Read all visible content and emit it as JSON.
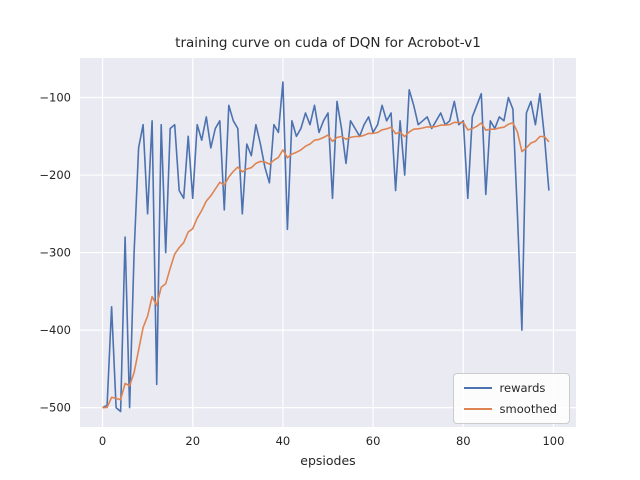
{
  "chart_data": {
    "type": "line",
    "title": "training curve on cuda of DQN for Acrobot-v1",
    "xlabel": "epsiodes",
    "ylabel": "",
    "xlim": [
      -5,
      105
    ],
    "ylim": [
      -525,
      -49
    ],
    "x_ticks": [
      0,
      20,
      40,
      60,
      80,
      100
    ],
    "y_ticks": [
      -500,
      -400,
      -300,
      -200,
      -100
    ],
    "grid": true,
    "legend_position": "lower right",
    "colors": {
      "axes_background": "#eaeaf2",
      "gridline": "#ffffff",
      "text": "#262626",
      "rewards": "#4c72b0",
      "smoothed": "#dd8452"
    },
    "x": [
      0,
      1,
      2,
      3,
      4,
      5,
      6,
      7,
      8,
      9,
      10,
      11,
      12,
      13,
      14,
      15,
      16,
      17,
      18,
      19,
      20,
      21,
      22,
      23,
      24,
      25,
      26,
      27,
      28,
      29,
      30,
      31,
      32,
      33,
      34,
      35,
      36,
      37,
      38,
      39,
      40,
      41,
      42,
      43,
      44,
      45,
      46,
      47,
      48,
      49,
      50,
      51,
      52,
      53,
      54,
      55,
      56,
      57,
      58,
      59,
      60,
      61,
      62,
      63,
      64,
      65,
      66,
      67,
      68,
      69,
      70,
      71,
      72,
      73,
      74,
      75,
      76,
      77,
      78,
      79,
      80,
      81,
      82,
      83,
      84,
      85,
      86,
      87,
      88,
      89,
      90,
      91,
      92,
      93,
      94,
      95,
      96,
      97,
      98,
      99
    ],
    "series": [
      {
        "name": "rewards",
        "color": "#4c72b0",
        "values": [
          -500,
          -497,
          -370,
          -500,
          -505,
          -280,
          -500,
          -300,
          -165,
          -135,
          -250,
          -130,
          -470,
          -135,
          -300,
          -140,
          -135,
          -220,
          -230,
          -150,
          -230,
          -135,
          -155,
          -125,
          -165,
          -140,
          -130,
          -245,
          -110,
          -130,
          -140,
          -250,
          -160,
          -175,
          -135,
          -160,
          -190,
          -210,
          -135,
          -145,
          -80,
          -270,
          -130,
          -150,
          -140,
          -120,
          -135,
          -110,
          -145,
          -130,
          -120,
          -230,
          -105,
          -140,
          -185,
          -130,
          -140,
          -150,
          -135,
          -125,
          -145,
          -135,
          -110,
          -130,
          -120,
          -220,
          -130,
          -200,
          -90,
          -110,
          -135,
          -130,
          -125,
          -140,
          -130,
          -120,
          -135,
          -130,
          -105,
          -135,
          -130,
          -230,
          -125,
          -110,
          -95,
          -225,
          -130,
          -140,
          -125,
          -130,
          -100,
          -115,
          -250,
          -400,
          -120,
          -105,
          -135,
          -95,
          -150,
          -220
        ]
      },
      {
        "name": "smoothed",
        "color": "#dd8452",
        "values": [
          -500,
          -499.7,
          -486.7,
          -488.1,
          -489.8,
          -468.8,
          -471.9,
          -454.7,
          -425.7,
          -396.6,
          -382.0,
          -356.8,
          -368.1,
          -344.8,
          -340.3,
          -320.3,
          -301.8,
          -293.6,
          -287.2,
          -273.5,
          -269.2,
          -255.7,
          -245.7,
          -233.6,
          -226.7,
          -218.1,
          -209.3,
          -212.8,
          -202.5,
          -195.3,
          -189.8,
          -195.8,
          -192.2,
          -190.5,
          -184.9,
          -182.4,
          -183.2,
          -185.9,
          -180.8,
          -177.2,
          -167.5,
          -177.7,
          -173.0,
          -170.7,
          -167.6,
          -162.8,
          -160.0,
          -155.0,
          -154.0,
          -151.6,
          -148.5,
          -156.6,
          -151.4,
          -150.3,
          -153.8,
          -151.4,
          -150.2,
          -150.2,
          -148.7,
          -146.3,
          -146.2,
          -145.1,
          -141.6,
          -140.4,
          -138.4,
          -146.5,
          -144.9,
          -150.4,
          -144.3,
          -140.9,
          -140.3,
          -139.3,
          -137.9,
          -138.1,
          -137.3,
          -135.5,
          -135.5,
          -134.9,
          -131.9,
          -132.2,
          -132.0,
          -141.8,
          -140.1,
          -137.1,
          -132.9,
          -142.1,
          -140.9,
          -140.8,
          -139.2,
          -138.3,
          -134.5,
          -132.5,
          -144.3,
          -169.8,
          -164.8,
          -158.8,
          -156.4,
          -150.3,
          -150.3,
          -157.2
        ]
      }
    ]
  }
}
